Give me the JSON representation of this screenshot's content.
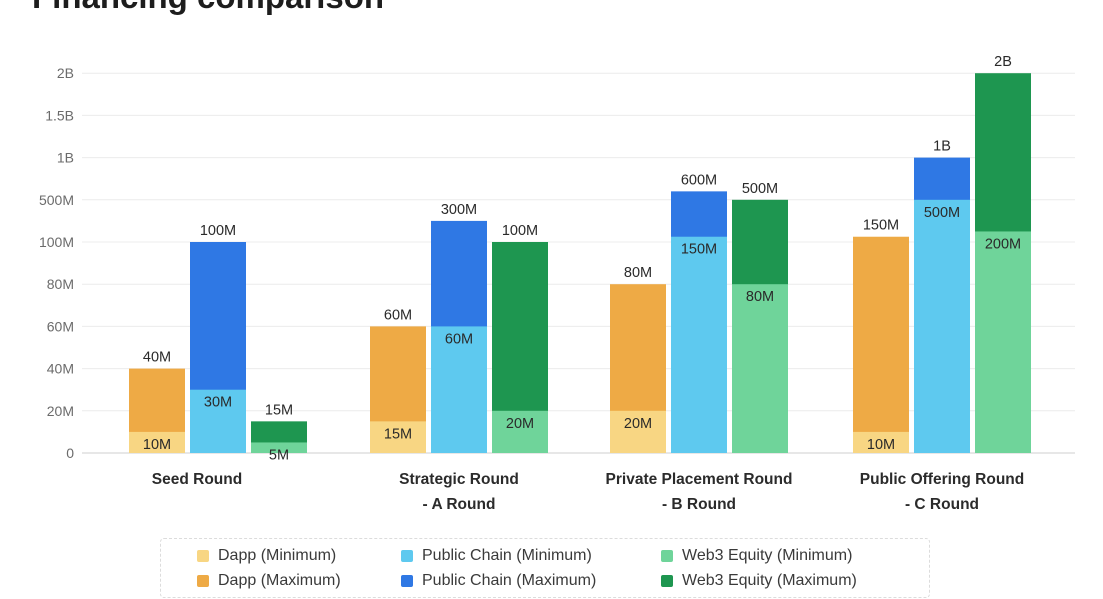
{
  "chart_data": {
    "type": "bar",
    "title": "Financing comparison",
    "categories": [
      [
        "Seed Round"
      ],
      [
        "Strategic Round",
        "- A Round"
      ],
      [
        "Private Placement Round",
        "- B Round"
      ],
      [
        "Public Offering Round",
        "- C Round"
      ]
    ],
    "y_ticks": [
      "0",
      "20M",
      "40M",
      "60M",
      "80M",
      "100M",
      "500M",
      "1B",
      "1.5B",
      "2B"
    ],
    "y_scale": "piecewise (0–100M linear steps of 20M, then 500M, 1B, 1.5B, 2B)",
    "grid": true,
    "legend_position": "bottom",
    "series": [
      {
        "group": "Dapp",
        "min_name": "Dapp (Minimum)",
        "max_name": "Dapp (Maximum)",
        "min_color": "#f8d683",
        "max_color": "#eeaa45",
        "min_values": [
          10,
          15,
          20,
          10
        ],
        "max_values": [
          40,
          60,
          80,
          150
        ],
        "min_labels": [
          "10M",
          "15M",
          "20M",
          "10M"
        ],
        "max_labels": [
          "40M",
          "60M",
          "80M",
          "150M"
        ]
      },
      {
        "group": "Public Chain",
        "min_name": "Public Chain  (Minimum)",
        "max_name": "Public Chain  (Maximum)",
        "min_color": "#5ec9ef",
        "max_color": "#2f78e4",
        "min_values": [
          30,
          60,
          150,
          500
        ],
        "max_values": [
          100,
          300,
          600,
          1000
        ],
        "min_labels": [
          "30M",
          "60M",
          "150M",
          "500M"
        ],
        "max_labels": [
          "100M",
          "300M",
          "600M",
          "1B"
        ]
      },
      {
        "group": "Web3 Equity",
        "min_name": "Web3 Equity (Minimum)",
        "max_name": "Web3 Equity (Maximum)",
        "min_color": "#6fd49a",
        "max_color": "#1e9650",
        "min_values": [
          5,
          20,
          80,
          200
        ],
        "max_values": [
          15,
          100,
          500,
          2000
        ],
        "min_labels": [
          "5M",
          "20M",
          "80M",
          "200M"
        ],
        "max_labels": [
          "15M",
          "100M",
          "500M",
          "2B"
        ]
      }
    ]
  }
}
